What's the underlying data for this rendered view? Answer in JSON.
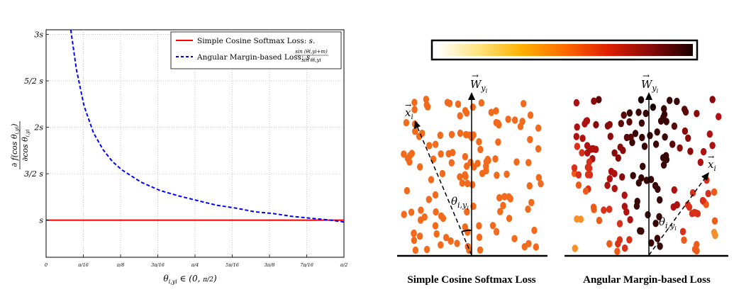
{
  "chart_data": {
    "type": "line",
    "title": "",
    "xlabel": "θ_{i,y_i} ∈ (0, π/2)",
    "ylabel": "∂ f(cos θ_{i,y_i}) / ∂ cos θ_{i,y_i}",
    "xlim": [
      0,
      1.5708
    ],
    "ylim": [
      0.6,
      3.05
    ],
    "grid": true,
    "legend_position": "top-right",
    "x_ticks": [
      {
        "value": 0,
        "label": "0"
      },
      {
        "value": 0.19635,
        "label": "π/16"
      },
      {
        "value": 0.3927,
        "label": "π/8"
      },
      {
        "value": 0.58905,
        "label": "3π/16"
      },
      {
        "value": 0.7854,
        "label": "π/4"
      },
      {
        "value": 0.98175,
        "label": "5π/16"
      },
      {
        "value": 1.1781,
        "label": "3π/8"
      },
      {
        "value": 1.37445,
        "label": "7π/16"
      },
      {
        "value": 1.5708,
        "label": "π/2"
      }
    ],
    "y_ticks": [
      {
        "value": 1.0,
        "label": "s"
      },
      {
        "value": 1.5,
        "label": "3/2 s"
      },
      {
        "value": 2.0,
        "label": "2s"
      },
      {
        "value": 2.5,
        "label": "5/2 s"
      },
      {
        "value": 3.0,
        "label": "3s"
      }
    ],
    "series": [
      {
        "name": "Simple Cosine Softmax Loss: s.",
        "color": "#ff0000",
        "style": "solid",
        "x": [
          0.0,
          1.5708
        ],
        "y": [
          1.0,
          1.0
        ]
      },
      {
        "name": "Angular Margin-based Loss: s·sin(θ_{i,y_i}+m)/sin θ_{i,y_i}",
        "color": "#0000ff",
        "style": "dashed",
        "x": [
          0.13,
          0.16,
          0.2,
          0.25,
          0.3,
          0.35,
          0.4,
          0.5,
          0.6,
          0.7,
          0.8,
          0.9,
          1.0,
          1.1,
          1.2,
          1.3,
          1.4,
          1.5,
          1.5708
        ],
        "y": [
          3.06,
          2.62,
          2.23,
          1.94,
          1.76,
          1.63,
          1.54,
          1.41,
          1.32,
          1.26,
          1.21,
          1.16,
          1.13,
          1.09,
          1.07,
          1.04,
          1.02,
          1.0,
          0.98
        ]
      }
    ]
  },
  "illustration": {
    "colorbar": {
      "stops": [
        "#ffffff",
        "#ffe27a",
        "#ffb000",
        "#ff6a00",
        "#e02000",
        "#8a0a0a",
        "#1a0000"
      ]
    },
    "left_panel": {
      "weight_label": "W",
      "weight_sub": "y",
      "weight_subsub": "i",
      "x_label": "x",
      "x_sub": "i",
      "theta_label": "θ",
      "theta_sub": "i,y",
      "theta_subsub": "i",
      "caption": "Simple Cosine Softmax Loss",
      "dot_color": "#f26a1b"
    },
    "right_panel": {
      "weight_label": "W",
      "weight_sub": "y",
      "weight_subsub": "i",
      "x_label": "x",
      "x_sub": "i",
      "theta_label": "θ",
      "theta_sub": "i,y",
      "theta_subsub": "i",
      "caption": "Angular Margin-based Loss"
    }
  }
}
